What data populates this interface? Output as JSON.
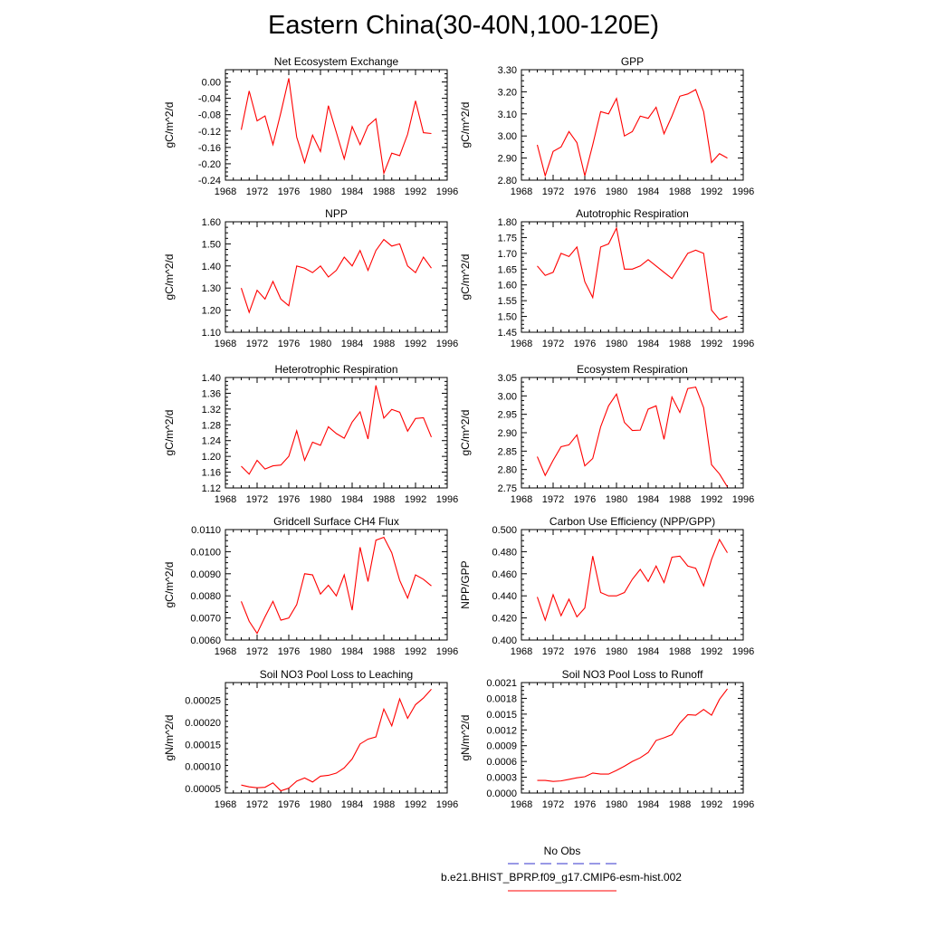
{
  "title": "Eastern China(30-40N,100-120E)",
  "colors": {
    "model": "#ff0000",
    "obs": "#3333cc"
  },
  "legend": {
    "obs_label": "No Obs",
    "model_label": "b.e21.BHIST_BPRP.f09_g17.CMIP6-esm-hist.002"
  },
  "chart_data": [
    {
      "type": "line",
      "title": "Net Ecosystem Exchange",
      "ylabel": "gC/m^2/d",
      "xlim": [
        1968,
        1996
      ],
      "xticks": [
        "1968",
        "1972",
        "1976",
        "1980",
        "1984",
        "1988",
        "1992",
        "1996"
      ],
      "ylim": [
        -0.24,
        0.03
      ],
      "yticks": [
        "0.00",
        "-0.04",
        "-0.08",
        "-0.12",
        "-0.16",
        "-0.20",
        "-0.24"
      ],
      "x": [
        1970,
        1971,
        1972,
        1973,
        1974,
        1975,
        1976,
        1977,
        1978,
        1979,
        1980,
        1981,
        1982,
        1983,
        1984,
        1985,
        1986,
        1987,
        1988,
        1989,
        1990,
        1991,
        1992,
        1993,
        1994
      ],
      "series": [
        {
          "values": [
            -0.117,
            -0.022,
            -0.095,
            -0.083,
            -0.153,
            -0.075,
            0.009,
            -0.135,
            -0.197,
            -0.13,
            -0.17,
            -0.058,
            -0.123,
            -0.188,
            -0.109,
            -0.153,
            -0.107,
            -0.09,
            -0.223,
            -0.174,
            -0.18,
            -0.128,
            -0.046,
            -0.124,
            -0.126
          ]
        }
      ]
    },
    {
      "type": "line",
      "title": "GPP",
      "ylabel": "gC/m^2/d",
      "xlim": [
        1968,
        1996
      ],
      "xticks": [
        "1968",
        "1972",
        "1976",
        "1980",
        "1984",
        "1988",
        "1992",
        "1996"
      ],
      "ylim": [
        2.8,
        3.3
      ],
      "yticks": [
        "3.30",
        "3.20",
        "3.10",
        "3.00",
        "2.90",
        "2.80"
      ],
      "x": [
        1970,
        1971,
        1972,
        1973,
        1974,
        1975,
        1976,
        1977,
        1978,
        1979,
        1980,
        1981,
        1982,
        1983,
        1984,
        1985,
        1986,
        1987,
        1988,
        1989,
        1990,
        1991,
        1992,
        1993,
        1994
      ],
      "series": [
        {
          "values": [
            2.96,
            2.82,
            2.93,
            2.95,
            3.02,
            2.97,
            2.82,
            2.96,
            3.11,
            3.1,
            3.17,
            3.0,
            3.02,
            3.09,
            3.08,
            3.13,
            3.01,
            3.09,
            3.18,
            3.19,
            3.21,
            3.11,
            2.88,
            2.92,
            2.9
          ]
        }
      ]
    },
    {
      "type": "line",
      "title": "NPP",
      "ylabel": "gC/m^2/d",
      "xlim": [
        1968,
        1996
      ],
      "xticks": [
        "1968",
        "1972",
        "1976",
        "1980",
        "1984",
        "1988",
        "1992",
        "1996"
      ],
      "ylim": [
        1.1,
        1.6
      ],
      "yticks": [
        "1.60",
        "1.50",
        "1.40",
        "1.30",
        "1.20",
        "1.10"
      ],
      "x": [
        1970,
        1971,
        1972,
        1973,
        1974,
        1975,
        1976,
        1977,
        1978,
        1979,
        1980,
        1981,
        1982,
        1983,
        1984,
        1985,
        1986,
        1987,
        1988,
        1989,
        1990,
        1991,
        1992,
        1993,
        1994
      ],
      "series": [
        {
          "values": [
            1.3,
            1.19,
            1.29,
            1.25,
            1.33,
            1.25,
            1.22,
            1.4,
            1.39,
            1.37,
            1.4,
            1.35,
            1.38,
            1.44,
            1.4,
            1.47,
            1.38,
            1.47,
            1.52,
            1.49,
            1.5,
            1.4,
            1.37,
            1.44,
            1.39
          ]
        }
      ]
    },
    {
      "type": "line",
      "title": "Autotrophic Respiration",
      "ylabel": "gC/m^2/d",
      "xlim": [
        1968,
        1996
      ],
      "xticks": [
        "1968",
        "1972",
        "1976",
        "1980",
        "1984",
        "1988",
        "1992",
        "1996"
      ],
      "ylim": [
        1.45,
        1.8
      ],
      "yticks": [
        "1.80",
        "1.75",
        "1.70",
        "1.65",
        "1.60",
        "1.55",
        "1.50",
        "1.45"
      ],
      "x": [
        1970,
        1971,
        1972,
        1973,
        1974,
        1975,
        1976,
        1977,
        1978,
        1979,
        1980,
        1981,
        1982,
        1983,
        1984,
        1985,
        1986,
        1987,
        1988,
        1989,
        1990,
        1991,
        1992,
        1993,
        1994
      ],
      "series": [
        {
          "values": [
            1.66,
            1.63,
            1.64,
            1.7,
            1.69,
            1.72,
            1.61,
            1.56,
            1.72,
            1.73,
            1.78,
            1.65,
            1.65,
            1.66,
            1.68,
            1.66,
            1.64,
            1.62,
            1.66,
            1.7,
            1.71,
            1.7,
            1.52,
            1.49,
            1.5
          ]
        }
      ]
    },
    {
      "type": "line",
      "title": "Heterotrophic Respiration",
      "ylabel": "gC/m^2/d",
      "xlim": [
        1968,
        1996
      ],
      "xticks": [
        "1968",
        "1972",
        "1976",
        "1980",
        "1984",
        "1988",
        "1992",
        "1996"
      ],
      "ylim": [
        1.12,
        1.4
      ],
      "yticks": [
        "1.40",
        "1.36",
        "1.32",
        "1.28",
        "1.24",
        "1.20",
        "1.16",
        "1.12"
      ],
      "x": [
        1970,
        1971,
        1972,
        1973,
        1974,
        1975,
        1976,
        1977,
        1978,
        1979,
        1980,
        1981,
        1982,
        1983,
        1984,
        1985,
        1986,
        1987,
        1988,
        1989,
        1990,
        1991,
        1992,
        1993,
        1994
      ],
      "series": [
        {
          "values": [
            1.175,
            1.155,
            1.19,
            1.168,
            1.176,
            1.178,
            1.2,
            1.265,
            1.19,
            1.236,
            1.228,
            1.275,
            1.258,
            1.246,
            1.287,
            1.313,
            1.244,
            1.38,
            1.297,
            1.319,
            1.312,
            1.264,
            1.296,
            1.298,
            1.249
          ]
        }
      ]
    },
    {
      "type": "line",
      "title": "Ecosystem Respiration",
      "ylabel": "gC/m^2/d",
      "xlim": [
        1968,
        1996
      ],
      "xticks": [
        "1968",
        "1972",
        "1976",
        "1980",
        "1984",
        "1988",
        "1992",
        "1996"
      ],
      "ylim": [
        2.75,
        3.05
      ],
      "yticks": [
        "3.05",
        "3.00",
        "2.95",
        "2.90",
        "2.85",
        "2.80",
        "2.75"
      ],
      "x": [
        1970,
        1971,
        1972,
        1973,
        1974,
        1975,
        1976,
        1977,
        1978,
        1979,
        1980,
        1981,
        1982,
        1983,
        1984,
        1985,
        1986,
        1987,
        1988,
        1989,
        1990,
        1991,
        1992,
        1993,
        1994
      ],
      "series": [
        {
          "values": [
            2.835,
            2.784,
            2.825,
            2.862,
            2.867,
            2.894,
            2.81,
            2.83,
            2.916,
            2.973,
            3.005,
            2.928,
            2.906,
            2.907,
            2.964,
            2.973,
            2.882,
            2.997,
            2.955,
            3.02,
            3.024,
            2.968,
            2.813,
            2.788,
            2.753
          ]
        }
      ]
    },
    {
      "type": "line",
      "title": "Gridcell Surface CH4 Flux",
      "ylabel": "gC/m^2/d",
      "xlim": [
        1968,
        1996
      ],
      "xticks": [
        "1968",
        "1972",
        "1976",
        "1980",
        "1984",
        "1988",
        "1992",
        "1996"
      ],
      "ylim": [
        0.006,
        0.011
      ],
      "yticks": [
        "0.0110",
        "0.0100",
        "0.0090",
        "0.0080",
        "0.0070",
        "0.0060"
      ],
      "x": [
        1970,
        1971,
        1972,
        1973,
        1974,
        1975,
        1976,
        1977,
        1978,
        1979,
        1980,
        1981,
        1982,
        1983,
        1984,
        1985,
        1986,
        1987,
        1988,
        1989,
        1990,
        1991,
        1992,
        1993,
        1994
      ],
      "series": [
        {
          "values": [
            0.00775,
            0.00685,
            0.0063,
            0.00705,
            0.00775,
            0.0069,
            0.007,
            0.0076,
            0.009,
            0.00895,
            0.00808,
            0.00848,
            0.008,
            0.00895,
            0.00735,
            0.0102,
            0.00865,
            0.01052,
            0.01065,
            0.00995,
            0.0087,
            0.0079,
            0.00895,
            0.00875,
            0.00845
          ]
        }
      ]
    },
    {
      "type": "line",
      "title": "Carbon Use Efficiency (NPP/GPP)",
      "ylabel": "NPP/GPP",
      "xlim": [
        1968,
        1996
      ],
      "xticks": [
        "1968",
        "1972",
        "1976",
        "1980",
        "1984",
        "1988",
        "1992",
        "1996"
      ],
      "ylim": [
        0.4,
        0.5
      ],
      "yticks": [
        "0.500",
        "0.480",
        "0.460",
        "0.440",
        "0.420",
        "0.400"
      ],
      "x": [
        1970,
        1971,
        1972,
        1973,
        1974,
        1975,
        1976,
        1977,
        1978,
        1979,
        1980,
        1981,
        1982,
        1983,
        1984,
        1985,
        1986,
        1987,
        1988,
        1989,
        1990,
        1991,
        1992,
        1993,
        1994
      ],
      "series": [
        {
          "values": [
            0.439,
            0.418,
            0.441,
            0.422,
            0.437,
            0.421,
            0.429,
            0.476,
            0.443,
            0.44,
            0.44,
            0.443,
            0.455,
            0.464,
            0.453,
            0.467,
            0.452,
            0.475,
            0.476,
            0.467,
            0.465,
            0.449,
            0.473,
            0.491,
            0.479
          ]
        }
      ]
    },
    {
      "type": "line",
      "title": "Soil NO3 Pool Loss to Leaching",
      "ylabel": "gN/m^2/d",
      "xlim": [
        1968,
        1996
      ],
      "xticks": [
        "1968",
        "1972",
        "1976",
        "1980",
        "1984",
        "1988",
        "1992",
        "1996"
      ],
      "ylim": [
        4e-05,
        0.00029
      ],
      "yticks": [
        "0.00025",
        "0.00020",
        "0.00015",
        "0.00010",
        "0.00005"
      ],
      "x": [
        1970,
        1971,
        1972,
        1973,
        1974,
        1975,
        1976,
        1977,
        1978,
        1979,
        1980,
        1981,
        1982,
        1983,
        1984,
        1985,
        1986,
        1987,
        1988,
        1989,
        1990,
        1991,
        1992,
        1993,
        1994
      ],
      "series": [
        {
          "values": [
            5.8e-05,
            5.4e-05,
            5.2e-05,
            5.3e-05,
            6.3e-05,
            4.5e-05,
            5.1e-05,
            6.7e-05,
            7.4e-05,
            6.5e-05,
            7.8e-05,
            8e-05,
            8.5e-05,
            9.7e-05,
            0.000117,
            0.000151,
            0.000162,
            0.000167,
            0.00023,
            0.000192,
            0.000253,
            0.000209,
            0.00024,
            0.000255,
            0.000275
          ]
        }
      ]
    },
    {
      "type": "line",
      "title": "Soil NO3 Pool Loss to Runoff",
      "ylabel": "gN/m^2/d",
      "xlim": [
        1968,
        1996
      ],
      "xticks": [
        "1968",
        "1972",
        "1976",
        "1980",
        "1984",
        "1988",
        "1992",
        "1996"
      ],
      "ylim": [
        0.0,
        0.0021
      ],
      "yticks": [
        "0.0021",
        "0.0018",
        "0.0015",
        "0.0012",
        "0.0009",
        "0.0006",
        "0.0003",
        "0.0000"
      ],
      "x": [
        1970,
        1971,
        1972,
        1973,
        1974,
        1975,
        1976,
        1977,
        1978,
        1979,
        1980,
        1981,
        1982,
        1983,
        1984,
        1985,
        1986,
        1987,
        1988,
        1989,
        1990,
        1991,
        1992,
        1993,
        1994
      ],
      "series": [
        {
          "values": [
            0.00024,
            0.00024,
            0.00022,
            0.00023,
            0.00026,
            0.00029,
            0.00031,
            0.00038,
            0.00036,
            0.00036,
            0.00043,
            0.00051,
            0.0006,
            0.00067,
            0.00077,
            0.001,
            0.00105,
            0.00111,
            0.00133,
            0.00149,
            0.00148,
            0.00159,
            0.00148,
            0.00178,
            0.00198
          ]
        }
      ]
    }
  ]
}
